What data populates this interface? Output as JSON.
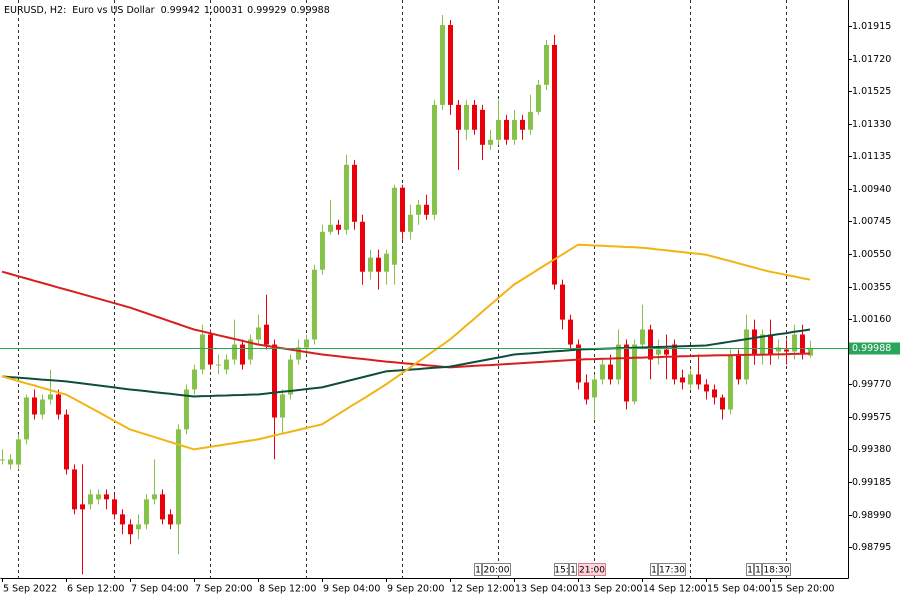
{
  "chart_data": {
    "type": "candlestick",
    "title": "EURUSD, H2:",
    "subtitle": "Euro vs US Dollar",
    "up_color": "#86c24a",
    "down_color": "#e8000b",
    "price_line_color": "#2aa65a",
    "categories": [
      "5 Sep 2022",
      null,
      null,
      null,
      null,
      null,
      null,
      null,
      "6 Sep 12:00",
      null,
      null,
      null,
      null,
      null,
      null,
      null,
      "7 Sep 04:00",
      null,
      null,
      null,
      null,
      null,
      null,
      null,
      "7 Sep 20:00",
      null,
      null,
      null,
      null,
      null,
      null,
      null,
      "8 Sep 12:00",
      null,
      null,
      null,
      null,
      null,
      null,
      null,
      "9 Sep 04:00",
      null,
      null,
      null,
      null,
      null,
      null,
      null,
      "9 Sep 20:00",
      null,
      null,
      null,
      null,
      null,
      null,
      null,
      "12 Sep 12:00",
      null,
      null,
      null,
      null,
      null,
      null,
      null,
      "13 Sep 04:00",
      null,
      null,
      null,
      null,
      null,
      null,
      null,
      "13 Sep 20:00",
      null,
      null,
      null,
      null,
      null,
      null,
      null,
      "14 Sep 12:00",
      null,
      null,
      null,
      null,
      null,
      null,
      null,
      "15 Sep 04:00",
      null,
      null,
      null,
      null,
      null,
      null,
      null,
      "15 Sep 20:00",
      null,
      null,
      null,
      null,
      null
    ],
    "open": [
      0.9932,
      0.9929,
      0.9929,
      0.9944,
      0.99691,
      0.99589,
      0.99679,
      0.99709,
      0.99589,
      0.9926,
      0.99051,
      0.99051,
      0.99081,
      0.99111,
      0.99081,
      0.98991,
      0.98931,
      0.98902,
      0.98931,
      0.99081,
      0.99111,
      0.98991,
      0.98931,
      0.995,
      0.99739,
      0.99858,
      1.00068,
      0.99888,
      0.99858,
      0.99918,
      1.00008,
      0.99918,
      1.00038,
      1.00127,
      1.00008,
      0.99571,
      0.99709,
      0.99918,
      0.9999,
      1.00038,
      1.00456,
      1.00683,
      1.00725,
      1.00695,
      1.01084,
      1.00743,
      1.00444,
      1.00528,
      1.00444,
      1.00486,
      1.00947,
      1.00683,
      1.00785,
      1.00845,
      1.00785,
      1.01443,
      1.01921,
      1.01443,
      1.01294,
      1.01443,
      1.01413,
      1.01204,
      1.01234,
      1.01353,
      1.01234,
      1.01353,
      1.01294,
      1.01401,
      1.01563,
      1.01802,
      1.00367,
      1.00157,
      1.00008,
      0.99781,
      0.99691,
      0.99799,
      0.99888,
      0.99799,
      1.00008,
      0.99667,
      1.00008,
      1.00098,
      0.99948,
      0.99978,
      1.00008,
      0.99811,
      0.99769,
      0.99829,
      0.99769,
      0.99739,
      0.99691,
      0.99619,
      0.99948,
      0.99799,
      1.00098,
      0.99948,
      1.00068,
      0.99966,
      0.99978,
      0.99966,
      1.00068,
      0.99942
    ],
    "high": [
      0.9938,
      0.9935,
      0.9947,
      0.99709,
      0.99739,
      0.99709,
      0.99858,
      0.99739,
      0.99619,
      0.9929,
      0.9929,
      0.99141,
      0.99141,
      0.99141,
      0.99111,
      0.99021,
      0.98961,
      0.98991,
      0.99111,
      0.9932,
      0.99141,
      0.99021,
      0.9953,
      0.99769,
      0.99888,
      1.00127,
      1.00098,
      0.99948,
      0.99948,
      1.00157,
      1.00038,
      1.00068,
      1.00187,
      1.00307,
      1.00038,
      0.99739,
      0.99948,
      1.00038,
      1.00068,
      1.00486,
      1.00725,
      1.00875,
      1.00755,
      1.01144,
      1.01114,
      1.00785,
      1.00576,
      1.00576,
      1.00576,
      1.00965,
      1.00965,
      1.00845,
      1.00875,
      1.00905,
      1.01473,
      1.01981,
      1.01951,
      1.01473,
      1.01473,
      1.01473,
      1.01443,
      1.01294,
      1.01473,
      1.01383,
      1.01413,
      1.01383,
      1.01503,
      1.01593,
      1.01832,
      1.01862,
      1.00397,
      1.00187,
      1.00038,
      0.99829,
      0.99829,
      0.99918,
      0.99948,
      1.00098,
      1.00038,
      1.00038,
      1.00247,
      1.00127,
      1.00038,
      1.00068,
      1.00038,
      0.99858,
      0.99858,
      0.99948,
      0.99799,
      0.99769,
      0.99709,
      0.99978,
      0.99978,
      1.00187,
      1.00157,
      1.00098,
      1.00157,
      1.00038,
      1.00038,
      1.00127,
      1.00127,
      1.00031
    ],
    "low": [
      0.9929,
      0.9926,
      0.9926,
      0.9941,
      0.99559,
      0.99559,
      0.99649,
      0.99559,
      0.9923,
      0.98991,
      0.98632,
      0.99021,
      0.99051,
      0.99021,
      0.98961,
      0.98872,
      0.98812,
      0.98842,
      0.98902,
      0.99051,
      0.98931,
      0.98902,
      0.98752,
      0.9947,
      0.99709,
      0.99829,
      0.99858,
      0.99829,
      0.99829,
      0.99888,
      0.99858,
      0.99888,
      1.00008,
      0.99978,
      0.9932,
      0.9947,
      0.99679,
      0.99888,
      0.99948,
      1.00008,
      1.00426,
      1.00666,
      1.00666,
      1.00666,
      1.00695,
      1.00367,
      1.00397,
      1.00337,
      1.00367,
      1.00367,
      1.00636,
      1.00636,
      1.00725,
      1.00755,
      1.00755,
      1.01413,
      1.01383,
      1.01054,
      1.01234,
      1.01264,
      1.01114,
      1.01174,
      1.01204,
      1.01204,
      1.01204,
      1.01234,
      1.01264,
      1.01383,
      1.01533,
      1.00337,
      1.00098,
      0.99978,
      0.99739,
      0.99649,
      0.99559,
      0.99769,
      0.99769,
      0.99769,
      0.99619,
      0.99649,
      0.99978,
      0.99799,
      0.99888,
      0.99799,
      0.99769,
      0.99739,
      0.99739,
      0.99739,
      0.99679,
      0.99649,
      0.99559,
      0.99589,
      0.99769,
      0.99769,
      0.99888,
      0.99888,
      0.99888,
      0.99918,
      0.99888,
      0.99918,
      0.99918,
      0.99929
    ],
    "close": [
      0.9932,
      0.9932,
      0.9944,
      0.99691,
      0.99589,
      0.99679,
      0.99709,
      0.99589,
      0.9926,
      0.99021,
      0.99021,
      0.99111,
      0.99111,
      0.99081,
      0.98991,
      0.98931,
      0.98872,
      0.98931,
      0.99081,
      0.99111,
      0.98961,
      0.98931,
      0.995,
      0.99739,
      0.99858,
      1.00068,
      0.99888,
      0.99888,
      0.99918,
      1.00008,
      0.99888,
      1.00038,
      1.0011,
      1.00008,
      0.99571,
      0.99709,
      0.99918,
      0.9999,
      1.00038,
      1.00456,
      1.00683,
      1.00725,
      1.00695,
      1.01084,
      1.00743,
      1.00444,
      1.00528,
      1.00444,
      1.00552,
      1.00947,
      1.00683,
      1.00785,
      1.00845,
      1.00785,
      1.01443,
      1.01921,
      1.01443,
      1.01294,
      1.01443,
      1.01294,
      1.01204,
      1.01234,
      1.01353,
      1.01234,
      1.01353,
      1.01294,
      1.01401,
      1.01563,
      1.01802,
      1.00367,
      1.00157,
      1.00008,
      0.99781,
      0.99679,
      0.99799,
      0.99888,
      0.99799,
      1.00008,
      0.99667,
      1.00008,
      1.00098,
      0.99918,
      0.99978,
      0.99948,
      0.99799,
      0.99781,
      0.99829,
      0.99769,
      0.99727,
      0.99691,
      0.99619,
      0.99948,
      0.99799,
      1.00098,
      0.99948,
      1.00068,
      0.99948,
      0.9999,
      0.99966,
      1.00068,
      0.99948,
      0.99988
    ],
    "lines": [
      {
        "color": "#d81e1e",
        "values": [
          1.00444,
          1.00431,
          1.00417,
          1.00404,
          1.0039,
          1.00377,
          1.00364,
          1.0035,
          1.00337,
          1.00324,
          1.0031,
          1.00297,
          1.00283,
          1.0027,
          1.00256,
          1.00243,
          1.00229,
          1.00213,
          1.00196,
          1.0018,
          1.00164,
          1.00147,
          1.00131,
          1.00114,
          1.00098,
          1.00087,
          1.00076,
          1.00064,
          1.00053,
          1.00042,
          1.00031,
          1.00019,
          1.00008,
          1.00001,
          0.99993,
          0.99986,
          0.99978,
          0.99971,
          0.99963,
          0.99956,
          0.99948,
          0.99943,
          0.99938,
          0.99932,
          0.99927,
          0.99922,
          0.99917,
          0.99911,
          0.99906,
          0.99902,
          0.99897,
          0.99893,
          0.99889,
          0.99884,
          0.9988,
          0.99875,
          0.99871,
          0.99874,
          0.99877,
          0.9988,
          0.99883,
          0.99885,
          0.99888,
          0.99891,
          0.99894,
          0.99897,
          0.999,
          0.99903,
          0.99906,
          0.99909,
          0.99912,
          0.99915,
          0.99918,
          0.9992,
          0.99921,
          0.99923,
          0.99924,
          0.99926,
          0.99927,
          0.99929,
          0.9993,
          0.99932,
          0.99933,
          0.99935,
          0.99936,
          0.99938,
          0.99939,
          0.99941,
          0.99942,
          0.99943,
          0.99944,
          0.99944,
          0.99945,
          0.99946,
          0.99947,
          0.99947,
          0.99948,
          0.99949,
          0.9995,
          0.99952,
          0.99953,
          0.99954
        ]
      },
      {
        "color": "#0f4d3c",
        "values": [
          0.99817,
          0.99813,
          0.9981,
          0.99806,
          0.99802,
          0.99798,
          0.99795,
          0.99791,
          0.99787,
          0.99781,
          0.99775,
          0.99769,
          0.99763,
          0.99757,
          0.99751,
          0.99745,
          0.99739,
          0.99734,
          0.99729,
          0.99723,
          0.99718,
          0.99713,
          0.99707,
          0.99702,
          0.99697,
          0.99699,
          0.997,
          0.99702,
          0.99703,
          0.99705,
          0.99706,
          0.99708,
          0.99709,
          0.99714,
          0.9972,
          0.99725,
          0.9973,
          0.99735,
          0.99741,
          0.99746,
          0.99751,
          0.99763,
          0.99775,
          0.99787,
          0.99799,
          0.99811,
          0.99823,
          0.99835,
          0.99847,
          0.99851,
          0.99854,
          0.99858,
          0.99861,
          0.99865,
          0.99869,
          0.99872,
          0.99876,
          0.99885,
          0.99894,
          0.99903,
          0.99912,
          0.99921,
          0.9993,
          0.99939,
          0.99948,
          0.99952,
          0.99955,
          0.99959,
          0.99963,
          0.99967,
          0.9997,
          0.99974,
          0.99978,
          0.9998,
          0.99981,
          0.99983,
          0.99984,
          0.99986,
          0.99987,
          0.99989,
          0.9999,
          0.99992,
          0.99993,
          0.99995,
          0.99996,
          0.99998,
          0.99999,
          1.00001,
          1.00002,
          1.0001,
          1.00017,
          1.00025,
          1.00032,
          1.0004,
          1.00047,
          1.00055,
          1.00062,
          1.00069,
          1.00076,
          1.00084,
          1.00091,
          1.00098
        ]
      },
      {
        "color": "#f2b413",
        "values": [
          0.99817,
          0.99804,
          0.9979,
          0.99776,
          0.99763,
          0.99749,
          0.99736,
          0.99722,
          0.99709,
          0.99683,
          0.99657,
          0.99631,
          0.99605,
          0.99578,
          0.99552,
          0.99526,
          0.995,
          0.99485,
          0.9947,
          0.99455,
          0.9944,
          0.99425,
          0.9941,
          0.99395,
          0.9938,
          0.99388,
          0.99395,
          0.99403,
          0.9941,
          0.99418,
          0.99425,
          0.99433,
          0.9944,
          0.99451,
          0.99463,
          0.99474,
          0.99485,
          0.99496,
          0.99508,
          0.99519,
          0.9953,
          0.9956,
          0.9959,
          0.9962,
          0.9965,
          0.99679,
          0.99709,
          0.99739,
          0.99769,
          0.99803,
          0.99836,
          0.9987,
          0.99904,
          0.99937,
          0.99971,
          1.00004,
          1.00038,
          1.00079,
          1.0012,
          1.00161,
          1.00203,
          1.00244,
          1.00285,
          1.00326,
          1.00367,
          1.00397,
          1.00427,
          1.00457,
          1.00487,
          1.00516,
          1.00546,
          1.00576,
          1.00606,
          1.00604,
          1.00601,
          1.00599,
          1.00597,
          1.00595,
          1.00592,
          1.0059,
          1.00588,
          1.00583,
          1.00577,
          1.00572,
          1.00567,
          1.00562,
          1.00556,
          1.00551,
          1.00546,
          1.00533,
          1.0052,
          1.00508,
          1.00495,
          1.00482,
          1.00469,
          1.00456,
          1.00444,
          1.00435,
          1.00425,
          1.00416,
          1.00406,
          1.00397
        ]
      }
    ],
    "ylim": [
      0.9861,
      1.02071
    ],
    "yticks": [
      {
        "value": 1.01915,
        "label": "1.01915"
      },
      {
        "value": 1.0172,
        "label": "1.01720"
      },
      {
        "value": 1.01525,
        "label": "1.01525"
      },
      {
        "value": 1.0133,
        "label": "1.01330"
      },
      {
        "value": 1.01135,
        "label": "1.01135"
      },
      {
        "value": 1.0094,
        "label": "1.00940"
      },
      {
        "value": 1.00745,
        "label": "1.00745"
      },
      {
        "value": 1.0055,
        "label": "1.00550"
      },
      {
        "value": 1.00355,
        "label": "1.00355"
      },
      {
        "value": 1.0016,
        "label": "1.00160"
      },
      {
        "value": 0.9977,
        "label": "0.99770"
      },
      {
        "value": 0.99575,
        "label": "0.99575"
      },
      {
        "value": 0.9938,
        "label": "0.99380"
      },
      {
        "value": 0.99185,
        "label": "0.99185"
      },
      {
        "value": 0.9899,
        "label": "0.98990"
      },
      {
        "value": 0.98795,
        "label": "0.98795"
      }
    ],
    "events": [
      "1",
      "20:00",
      "15:",
      "1",
      "21:00",
      "1",
      "17:30",
      "1",
      "1",
      "18:30"
    ]
  }
}
